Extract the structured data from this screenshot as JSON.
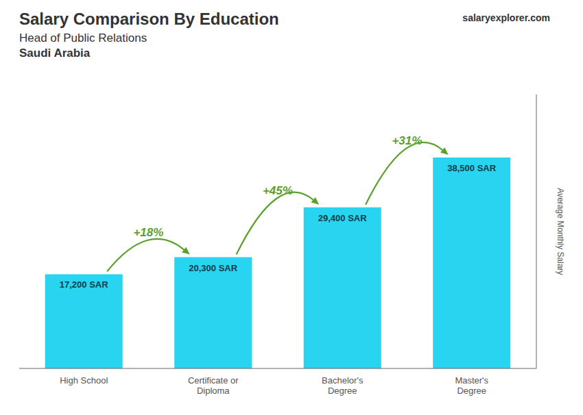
{
  "chart_data": {
    "type": "bar",
    "title": "Salary Comparison By Education",
    "subtitle": "Head of Public Relations",
    "categories": [
      "High School",
      "Certificate or\nDiploma",
      "Bachelor's\nDegree",
      "Master's\nDegree"
    ],
    "values": [
      17200,
      20300,
      29400,
      38500
    ],
    "value_labels": [
      "17,200 SAR",
      "20,300 SAR",
      "29,400 SAR",
      "38,500 SAR"
    ],
    "data_labels": true,
    "color": "#29d4f0",
    "ylim": [
      0,
      50000
    ],
    "ylabel": "Average Monthly Salary",
    "tick_labels": "x",
    "grid": false,
    "annotations": [
      {
        "text": "Saudi Arabia"
      },
      {
        "text": "salaryexplorer.com"
      },
      {
        "text": "+18%",
        "from": "High School",
        "to": "Certificate or\nDiploma"
      },
      {
        "text": "+45%",
        "from": "Certificate or\nDiploma",
        "to": "Bachelor's\nDegree"
      },
      {
        "text": "+31%",
        "from": "Bachelor's\nDegree",
        "to": "Master's\nDegree"
      }
    ]
  }
}
